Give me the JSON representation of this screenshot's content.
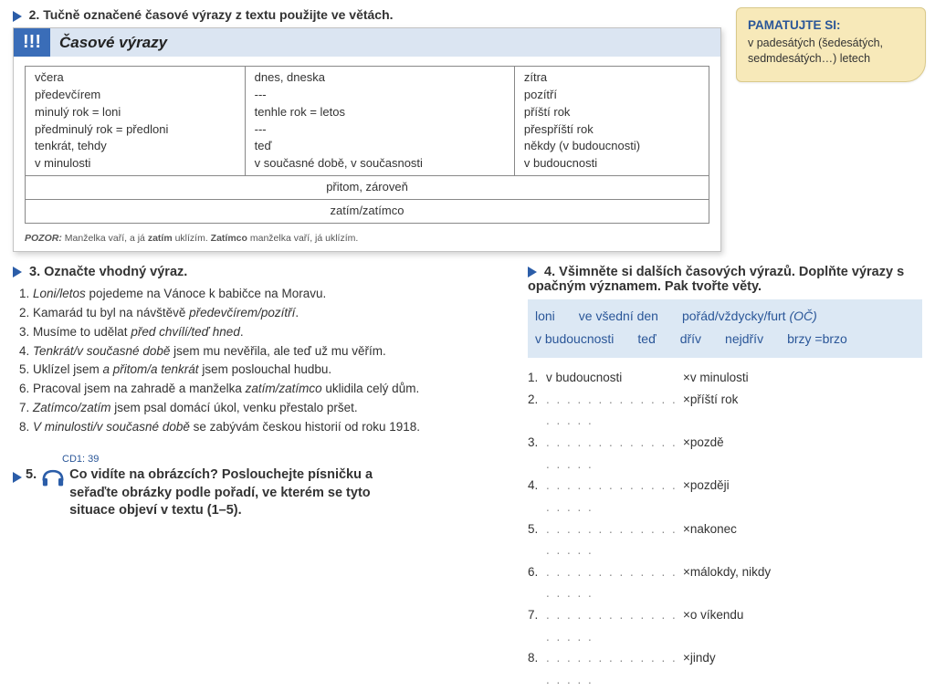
{
  "remember": {
    "title": "PAMATUJTE SI:",
    "body": "v padesátých (šedesátých, sedmdesátých…) letech"
  },
  "section2": {
    "heading_num": "2.",
    "heading_text": "Tučně označené časové výrazy z textu použijte ve větách.",
    "badge": "!!!",
    "card_title": "Časové výrazy",
    "table": {
      "rows": [
        [
          "včera\npředevčírem\nminulý rok = loni\npředminulý rok = předloni\ntenkrát, tehdy\nv minulosti",
          "dnes, dneska\n---\ntenhle rok = letos\n---\nteď\nv současné době, v současnosti",
          "zítra\npozítří\npříští rok\npřespříští rok\nněkdy (v budoucnosti)\nv budoucnosti"
        ]
      ],
      "span1": "přitom, zároveň",
      "span2": "zatím/zatímco"
    },
    "pozor_label": "POZOR:",
    "pozor_text_a": "Manželka vaří, a já ",
    "pozor_bold1": "zatím",
    "pozor_text_b": " uklízím. ",
    "pozor_bold2": "Zatímco",
    "pozor_text_c": " manželka vaří, já uklízím."
  },
  "section3": {
    "heading_num": "3.",
    "heading_text": "Označte vhodný výraz.",
    "items": [
      {
        "pre": "",
        "it": "Loni/letos",
        "post": " pojedeme na Vánoce k babičce na Moravu."
      },
      {
        "pre": "Kamarád tu byl na návštěvě ",
        "it": "předevčírem/pozítří",
        "post": "."
      },
      {
        "pre": "Musíme to udělat ",
        "it": "před chvílí/teď hned",
        "post": "."
      },
      {
        "pre": "",
        "it": "Tenkrát/v současné době",
        "post": " jsem mu nevěřila, ale teď už mu věřím."
      },
      {
        "pre": "Uklízel jsem ",
        "it": "a přitom/a tenkrát",
        "post": " jsem poslouchal hudbu."
      },
      {
        "pre": "Pracoval jsem na zahradě a manželka ",
        "it": "zatím/zatímco",
        "post": " uklidila celý dům."
      },
      {
        "pre": "",
        "it": "Zatímco/zatím",
        "post": " jsem psal domácí úkol, venku přestalo pršet."
      },
      {
        "pre": "",
        "it": "V minulosti/v současné době",
        "post": " se zabývám českou historií od roku 1918."
      }
    ]
  },
  "section4": {
    "heading_num": "4.",
    "heading_text": "Všimněte si dalších časových výrazů. Doplňte výrazy s opačným významem. Pak tvořte věty.",
    "bank": [
      "loni",
      "ve všední den",
      "pořád/vždycky/furt (OČ)",
      "v budoucnosti",
      "teď",
      "dřív",
      "nejdřív",
      "brzy =brzo"
    ],
    "fill": [
      {
        "n": "1.",
        "left": "v budoucnosti",
        "right": "v minulosti",
        "dots": false
      },
      {
        "n": "2.",
        "left": "",
        "right": "příští rok",
        "dots": true
      },
      {
        "n": "3.",
        "left": "",
        "right": "pozdě",
        "dots": true
      },
      {
        "n": "4.",
        "left": "",
        "right": "později",
        "dots": true
      },
      {
        "n": "5.",
        "left": "",
        "right": "nakonec",
        "dots": true
      },
      {
        "n": "6.",
        "left": "",
        "right": "málokdy, nikdy",
        "dots": true
      },
      {
        "n": "7.",
        "left": "",
        "right": "o víkendu",
        "dots": true
      },
      {
        "n": "8.",
        "left": "",
        "right": "jindy",
        "dots": true
      }
    ]
  },
  "section5": {
    "cd": "CD1: 39",
    "heading_num": "5.",
    "heading_text": "Co vidíte na obrázcích? Poslouchejte písničku a seřaďte obrázky podle pořadí, ve kterém se tyto situace objeví v textu (1–5)."
  },
  "colors": {
    "accent": "#2b5da8",
    "headerBlue": "#3a6db8",
    "lightBlue": "#dbe5f2",
    "bankBlue": "#dce8f4",
    "noteBg": "#f7e9b9"
  }
}
